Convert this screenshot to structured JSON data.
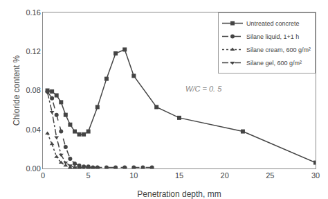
{
  "chart_data": {
    "type": "line",
    "xlabel": "Penetration depth, mm",
    "ylabel": "Chloride content %",
    "xlim": [
      0,
      30
    ],
    "ylim": [
      0,
      0.16
    ],
    "xticks": [
      0,
      5,
      10,
      15,
      20,
      25,
      30
    ],
    "yticks": [
      {
        "value": 0.0,
        "label": "0.00"
      },
      0.04,
      0.08,
      0.12,
      0.16
    ],
    "grid": false,
    "legend": "upper right",
    "annotations": [
      {
        "text": "W/C = 0. 5",
        "x": 15.5,
        "y": 0.076
      }
    ],
    "series": [
      {
        "name": "Untreated concrete",
        "color": "#444444",
        "line_style": "solid",
        "marker": "square",
        "x": [
          0.5,
          1.0,
          1.5,
          2.0,
          2.5,
          3.0,
          3.5,
          4.0,
          4.5,
          5.0,
          6.0,
          7.0,
          8.0,
          9.0,
          10.0,
          12.5,
          15.0,
          22.0,
          30.0
        ],
        "values": [
          0.08,
          0.079,
          0.075,
          0.068,
          0.055,
          0.045,
          0.038,
          0.035,
          0.035,
          0.038,
          0.063,
          0.092,
          0.118,
          0.122,
          0.095,
          0.063,
          0.052,
          0.038,
          0.006
        ]
      },
      {
        "name": "Silane liquid, 1+1 h",
        "color": "#444444",
        "line_style": "dashed",
        "marker": "circle",
        "x": [
          0.5,
          1.0,
          1.5,
          2.0,
          2.5,
          3.0,
          3.5,
          4.0,
          4.5,
          5.0,
          5.5,
          6.0,
          7.0,
          8.0,
          9.0,
          10.0,
          11.0,
          12.0
        ],
        "values": [
          0.079,
          0.072,
          0.055,
          0.038,
          0.022,
          0.01,
          0.005,
          0.003,
          0.002,
          0.002,
          0.001,
          0.001,
          0.001,
          0.001,
          0.001,
          0.001,
          0.001,
          0.001
        ]
      },
      {
        "name": "Silane cream, 600 g/m²",
        "color": "#444444",
        "line_style": "dotted",
        "marker": "triangle-up",
        "x": [
          0.5,
          1.0,
          1.5,
          2.0,
          2.5,
          3.0,
          3.5,
          4.0,
          5.0,
          6.0
        ],
        "values": [
          0.036,
          0.025,
          0.012,
          0.006,
          0.003,
          0.001,
          0.001,
          0.001,
          0.001,
          0.001
        ]
      },
      {
        "name": "Silane gel, 600 g/m²",
        "color": "#444444",
        "line_style": "dashdot",
        "marker": "triangle-down",
        "x": [
          0.5,
          1.0,
          1.5,
          2.0,
          2.5,
          3.0,
          3.5,
          4.0,
          5.0,
          6.0
        ],
        "values": [
          0.078,
          0.058,
          0.032,
          0.014,
          0.006,
          0.003,
          0.001,
          0.001,
          0.001,
          0.001
        ]
      }
    ]
  }
}
